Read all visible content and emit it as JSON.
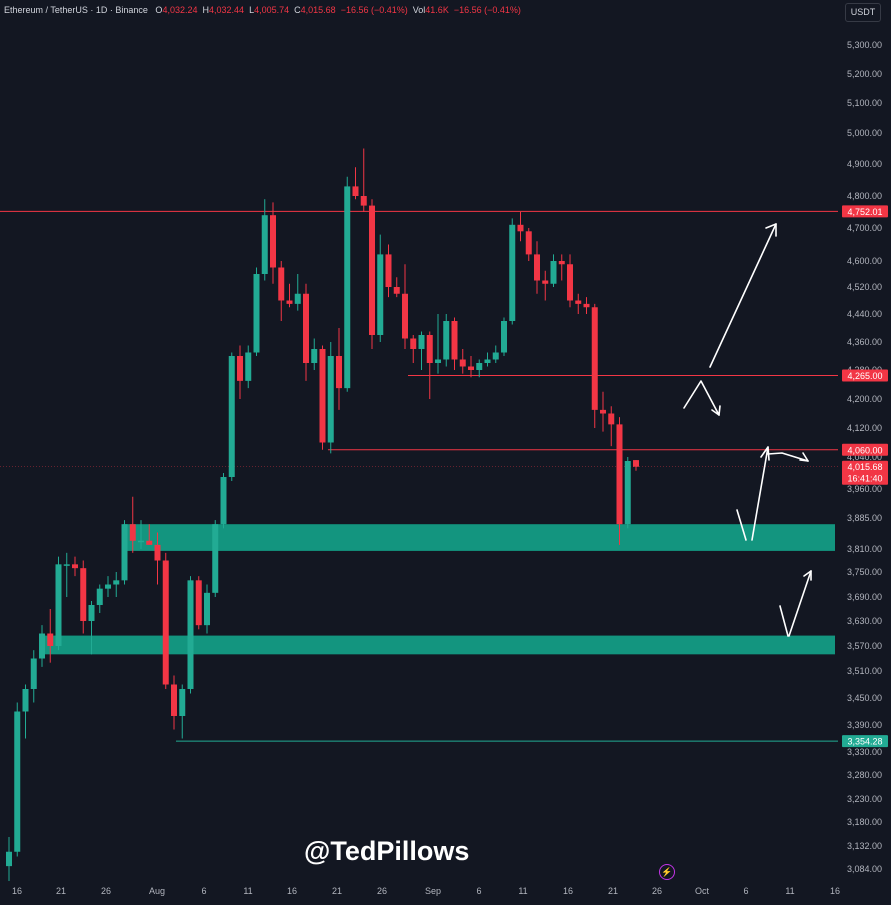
{
  "header": {
    "symbol": "Ethereum / TetherUS · 1D · Binance",
    "o_label": "O",
    "o_value": "4,032.24",
    "h_label": "H",
    "h_value": "4,032.44",
    "l_label": "L",
    "l_value": "4,005.74",
    "c_label": "C",
    "c_value": "4,015.68",
    "change": "−16.56 (−0.41%)",
    "vol_label": "Vol",
    "vol_value": "41.6K",
    "vol_change": "−16.56 (−0.41%)"
  },
  "currency_button": "USDT",
  "watermark": "@TedPillows",
  "colors": {
    "background": "#131722",
    "up": "#22ab94",
    "down": "#f23645",
    "zone": "#13957f",
    "level_red": "#f23645",
    "level_green": "#22ab94",
    "text": "#b2b5be",
    "bolt": "#c234e6"
  },
  "chart_data": {
    "type": "candlestick",
    "interval": "1D",
    "x_axis_labels": [
      "16",
      "21",
      "26",
      "Aug",
      "6",
      "11",
      "16",
      "21",
      "26",
      "Sep",
      "6",
      "11",
      "16",
      "21",
      "26",
      "Oct",
      "6",
      "11",
      "16"
    ],
    "y_axis_ticks": [
      "5,300.00",
      "5,200.00",
      "5,100.00",
      "5,000.00",
      "4,900.00",
      "4,800.00",
      "4,700.00",
      "4,600.00",
      "4,520.00",
      "4,440.00",
      "4,360.00",
      "4,280.00",
      "4,200.00",
      "4,120.00",
      "4,040.00",
      "3,960.00",
      "3,885.00",
      "3,810.00",
      "3,750.00",
      "3,690.00",
      "3,630.00",
      "3,570.00",
      "3,510.00",
      "3,450.00",
      "3,390.00",
      "3,330.00",
      "3,280.00",
      "3,230.00",
      "3,180.00",
      "3,132.00",
      "3,084.00"
    ],
    "candles": [
      {
        "o": 3090,
        "h": 3150,
        "l": 3060,
        "c": 3120
      },
      {
        "o": 3120,
        "h": 3440,
        "l": 3110,
        "c": 3420
      },
      {
        "o": 3420,
        "h": 3480,
        "l": 3360,
        "c": 3470
      },
      {
        "o": 3470,
        "h": 3560,
        "l": 3440,
        "c": 3540
      },
      {
        "o": 3540,
        "h": 3620,
        "l": 3520,
        "c": 3600
      },
      {
        "o": 3600,
        "h": 3660,
        "l": 3530,
        "c": 3570
      },
      {
        "o": 3570,
        "h": 3790,
        "l": 3560,
        "c": 3770
      },
      {
        "o": 3770,
        "h": 3800,
        "l": 3690,
        "c": 3770
      },
      {
        "o": 3770,
        "h": 3790,
        "l": 3740,
        "c": 3760
      },
      {
        "o": 3760,
        "h": 3780,
        "l": 3600,
        "c": 3630
      },
      {
        "o": 3630,
        "h": 3680,
        "l": 3550,
        "c": 3670
      },
      {
        "o": 3670,
        "h": 3720,
        "l": 3650,
        "c": 3710
      },
      {
        "o": 3710,
        "h": 3740,
        "l": 3690,
        "c": 3720
      },
      {
        "o": 3720,
        "h": 3750,
        "l": 3690,
        "c": 3730
      },
      {
        "o": 3730,
        "h": 3880,
        "l": 3720,
        "c": 3870
      },
      {
        "o": 3870,
        "h": 3940,
        "l": 3800,
        "c": 3830
      },
      {
        "o": 3830,
        "h": 3880,
        "l": 3810,
        "c": 3830
      },
      {
        "o": 3830,
        "h": 3870,
        "l": 3820,
        "c": 3820
      },
      {
        "o": 3820,
        "h": 3850,
        "l": 3720,
        "c": 3780
      },
      {
        "o": 3780,
        "h": 3800,
        "l": 3470,
        "c": 3480
      },
      {
        "o": 3480,
        "h": 3500,
        "l": 3380,
        "c": 3410
      },
      {
        "o": 3410,
        "h": 3480,
        "l": 3360,
        "c": 3470
      },
      {
        "o": 3470,
        "h": 3740,
        "l": 3460,
        "c": 3730
      },
      {
        "o": 3730,
        "h": 3740,
        "l": 3610,
        "c": 3620
      },
      {
        "o": 3620,
        "h": 3720,
        "l": 3600,
        "c": 3700
      },
      {
        "o": 3700,
        "h": 3880,
        "l": 3690,
        "c": 3870
      },
      {
        "o": 3870,
        "h": 4000,
        "l": 3860,
        "c": 3990
      },
      {
        "o": 3990,
        "h": 4330,
        "l": 3980,
        "c": 4320
      },
      {
        "o": 4320,
        "h": 4350,
        "l": 4200,
        "c": 4250
      },
      {
        "o": 4250,
        "h": 4350,
        "l": 4230,
        "c": 4330
      },
      {
        "o": 4330,
        "h": 4580,
        "l": 4320,
        "c": 4560
      },
      {
        "o": 4560,
        "h": 4790,
        "l": 4540,
        "c": 4740
      },
      {
        "o": 4740,
        "h": 4780,
        "l": 4530,
        "c": 4580
      },
      {
        "o": 4580,
        "h": 4600,
        "l": 4420,
        "c": 4480
      },
      {
        "o": 4480,
        "h": 4530,
        "l": 4460,
        "c": 4470
      },
      {
        "o": 4470,
        "h": 4560,
        "l": 4450,
        "c": 4500
      },
      {
        "o": 4500,
        "h": 4530,
        "l": 4250,
        "c": 4300
      },
      {
        "o": 4300,
        "h": 4370,
        "l": 4280,
        "c": 4340
      },
      {
        "o": 4340,
        "h": 4350,
        "l": 4060,
        "c": 4080
      },
      {
        "o": 4080,
        "h": 4360,
        "l": 4050,
        "c": 4320
      },
      {
        "o": 4320,
        "h": 4400,
        "l": 4170,
        "c": 4230
      },
      {
        "o": 4230,
        "h": 4860,
        "l": 4220,
        "c": 4830
      },
      {
        "o": 4830,
        "h": 4890,
        "l": 4790,
        "c": 4800
      },
      {
        "o": 4800,
        "h": 4950,
        "l": 4750,
        "c": 4770
      },
      {
        "o": 4770,
        "h": 4790,
        "l": 4340,
        "c": 4380
      },
      {
        "o": 4380,
        "h": 4680,
        "l": 4360,
        "c": 4620
      },
      {
        "o": 4620,
        "h": 4650,
        "l": 4490,
        "c": 4520
      },
      {
        "o": 4520,
        "h": 4550,
        "l": 4490,
        "c": 4500
      },
      {
        "o": 4500,
        "h": 4590,
        "l": 4340,
        "c": 4370
      },
      {
        "o": 4370,
        "h": 4380,
        "l": 4300,
        "c": 4340
      },
      {
        "o": 4340,
        "h": 4390,
        "l": 4280,
        "c": 4380
      },
      {
        "o": 4380,
        "h": 4390,
        "l": 4200,
        "c": 4300
      },
      {
        "o": 4300,
        "h": 4440,
        "l": 4270,
        "c": 4310
      },
      {
        "o": 4310,
        "h": 4440,
        "l": 4290,
        "c": 4420
      },
      {
        "o": 4420,
        "h": 4430,
        "l": 4280,
        "c": 4310
      },
      {
        "o": 4310,
        "h": 4340,
        "l": 4270,
        "c": 4290
      },
      {
        "o": 4290,
        "h": 4320,
        "l": 4260,
        "c": 4280
      },
      {
        "o": 4280,
        "h": 4310,
        "l": 4260,
        "c": 4300
      },
      {
        "o": 4300,
        "h": 4330,
        "l": 4290,
        "c": 4310
      },
      {
        "o": 4310,
        "h": 4350,
        "l": 4300,
        "c": 4330
      },
      {
        "o": 4330,
        "h": 4430,
        "l": 4320,
        "c": 4420
      },
      {
        "o": 4420,
        "h": 4730,
        "l": 4410,
        "c": 4710
      },
      {
        "o": 4710,
        "h": 4750,
        "l": 4660,
        "c": 4690
      },
      {
        "o": 4690,
        "h": 4700,
        "l": 4600,
        "c": 4620
      },
      {
        "o": 4620,
        "h": 4660,
        "l": 4500,
        "c": 4540
      },
      {
        "o": 4540,
        "h": 4570,
        "l": 4480,
        "c": 4530
      },
      {
        "o": 4530,
        "h": 4620,
        "l": 4520,
        "c": 4600
      },
      {
        "o": 4600,
        "h": 4620,
        "l": 4540,
        "c": 4590
      },
      {
        "o": 4590,
        "h": 4620,
        "l": 4460,
        "c": 4480
      },
      {
        "o": 4480,
        "h": 4500,
        "l": 4440,
        "c": 4470
      },
      {
        "o": 4470,
        "h": 4490,
        "l": 4440,
        "c": 4460
      },
      {
        "o": 4460,
        "h": 4470,
        "l": 4120,
        "c": 4170
      },
      {
        "o": 4170,
        "h": 4220,
        "l": 4110,
        "c": 4160
      },
      {
        "o": 4160,
        "h": 4180,
        "l": 4070,
        "c": 4130
      },
      {
        "o": 4130,
        "h": 4150,
        "l": 3820,
        "c": 3870
      },
      {
        "o": 3870,
        "h": 4040,
        "l": 3860,
        "c": 4030
      },
      {
        "o": 4032.24,
        "h": 4032.44,
        "l": 4005.74,
        "c": 4015.68
      }
    ]
  },
  "levels": [
    {
      "label": "4,752.01",
      "value": 4752.01,
      "color": "red",
      "kind": "resistance"
    },
    {
      "label": "4,265.00",
      "value": 4265.0,
      "color": "red",
      "kind": "resistance"
    },
    {
      "label": "4,060.00",
      "value": 4060.0,
      "color": "red",
      "kind": "resistance"
    },
    {
      "label": "3,354.28",
      "value": 3354.28,
      "color": "green",
      "kind": "support"
    }
  ],
  "current_price": {
    "label": "4,015.68",
    "countdown": "16:41:40",
    "value": 4015.68
  },
  "zones": [
    {
      "name": "support-zone-upper",
      "top": 3870,
      "bottom": 3805
    },
    {
      "name": "support-zone-lower",
      "top": 3595,
      "bottom": 3550
    }
  ]
}
